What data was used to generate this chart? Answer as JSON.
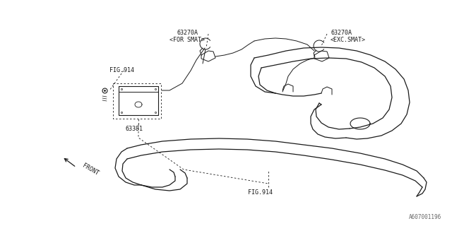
{
  "bg_color": "#ffffff",
  "line_color": "#1a1a1a",
  "fig_width": 6.4,
  "fig_height": 3.2,
  "dpi": 100,
  "part_number": "A607001196",
  "label_63270A_for": "63270A\n<FOR SMAT>",
  "label_63270A_exc": "63270A\n<EXC.SMAT>",
  "label_fig914_top": "FIG.914",
  "label_63381": "63381",
  "label_front": "FRONT",
  "label_fig914_bot": "FIG.914"
}
